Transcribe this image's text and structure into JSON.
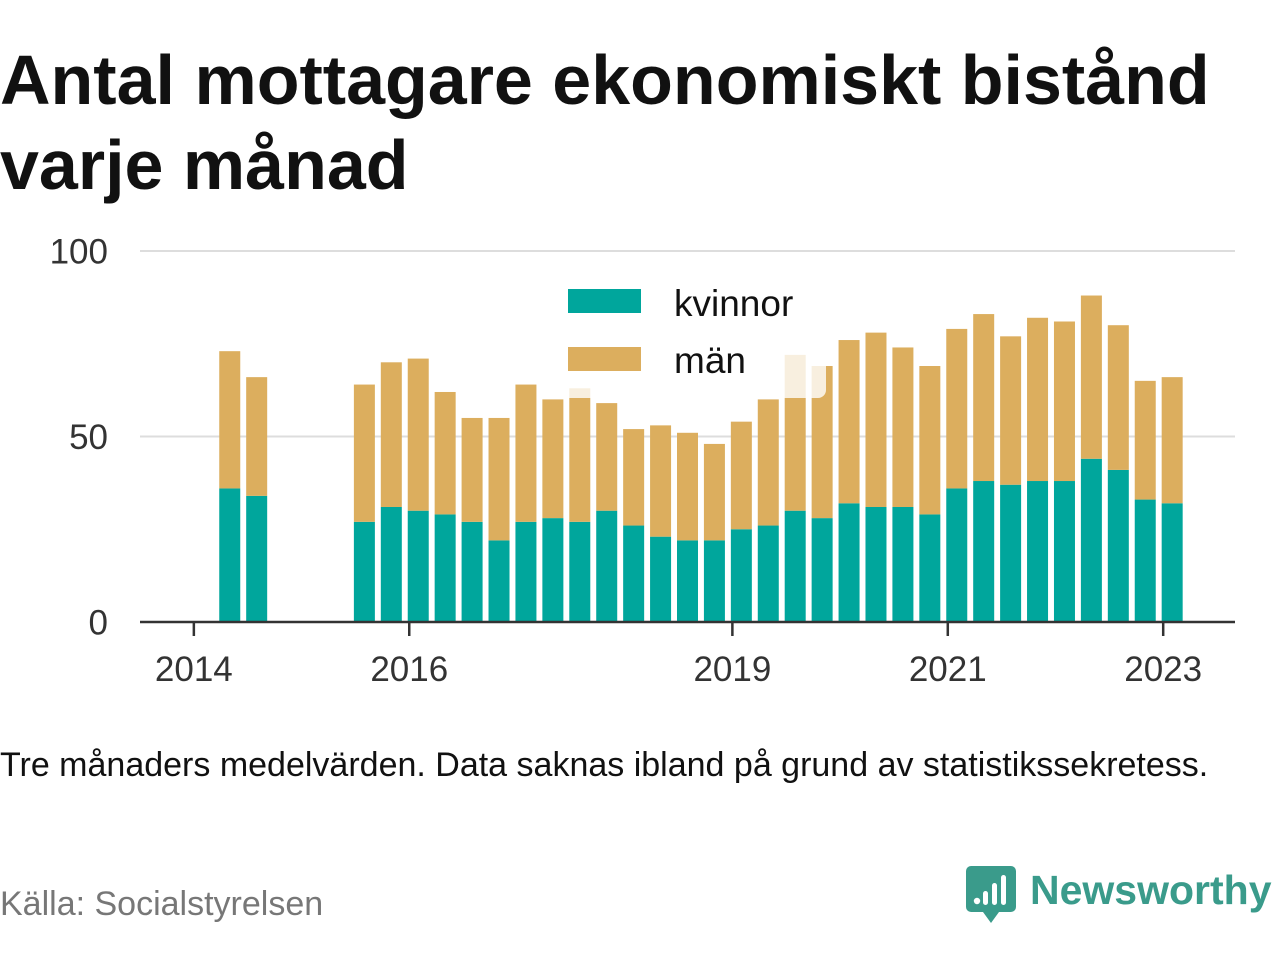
{
  "chart_data": {
    "type": "bar",
    "stacked": true,
    "title": "Antal mottagare ekonomiskt bistånd varje månad",
    "x": [
      "2014-05",
      "2014-08",
      "2015-08",
      "2015-11",
      "2016-02",
      "2016-05",
      "2016-08",
      "2016-11",
      "2017-02",
      "2017-05",
      "2017-08",
      "2017-11",
      "2018-02",
      "2018-05",
      "2018-08",
      "2018-11",
      "2019-02",
      "2019-05",
      "2019-08",
      "2019-11",
      "2020-02",
      "2020-05",
      "2020-08",
      "2020-11",
      "2021-02",
      "2021-05",
      "2021-08",
      "2021-11",
      "2022-02",
      "2022-05",
      "2022-08",
      "2022-11",
      "2023-02"
    ],
    "xticks": [
      "2014",
      "2016",
      "2019",
      "2021",
      "2023"
    ],
    "xlim": [
      "2013-07",
      "2023-09"
    ],
    "yticks": [
      0,
      50,
      100
    ],
    "ylim": [
      0,
      100
    ],
    "grid": true,
    "legend": "top-center",
    "series": [
      {
        "name": "kvinnor",
        "color": "#00a69c",
        "values": [
          36,
          34,
          27,
          31,
          30,
          29,
          27,
          22,
          27,
          28,
          27,
          30,
          26,
          23,
          22,
          22,
          25,
          26,
          30,
          28,
          32,
          31,
          31,
          29,
          36,
          38,
          37,
          38,
          38,
          44,
          41,
          33,
          32
        ]
      },
      {
        "name": "män",
        "color": "#dcae5e",
        "values": [
          37,
          32,
          37,
          39,
          41,
          33,
          28,
          33,
          37,
          32,
          36,
          29,
          26,
          30,
          29,
          26,
          29,
          34,
          42,
          41,
          44,
          47,
          43,
          40,
          43,
          45,
          40,
          44,
          43,
          44,
          39,
          32,
          34
        ]
      }
    ]
  },
  "caption": "Tre månaders medelvärden. Data saknas ibland på grund av statistikssekretess.",
  "source": "Källa: Socialstyrelsen",
  "logo": {
    "text": "Newsworthy",
    "color": "#3a9b8b",
    "icon": "newsworthy-bubble-chart-icon"
  }
}
